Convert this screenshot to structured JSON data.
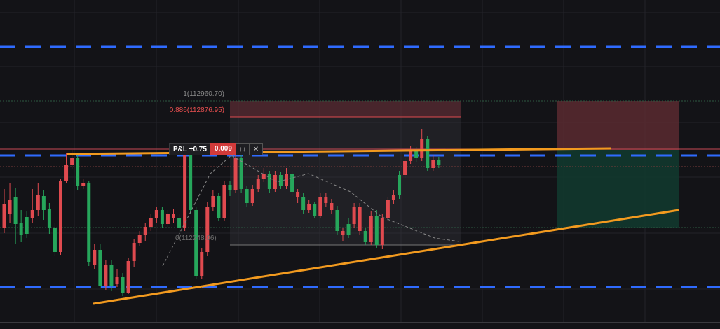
{
  "fib_levels": [
    {
      "label": "1(112960.70)",
      "color": "#8a8a8a"
    },
    {
      "label": "0.886(112876.95)",
      "color": "#e84f4f"
    },
    {
      "label": "0(112248.06)",
      "color": "#6f6f6f"
    }
  ],
  "position": {
    "pnl_label": "P&L +0.75",
    "quantity": "0.009",
    "reverse_icon": "↑↓",
    "close_icon": "✕"
  },
  "colors": {
    "background": "#131317",
    "grid": "#23232a",
    "bull": "#26a65b",
    "bear": "#e04a4f",
    "trendline": "#f29a1f",
    "dashed_level": "#2f6bff",
    "stop_zone": "#5a2a30",
    "target_zone": "#12392e"
  },
  "chart_data": {
    "type": "candlestick",
    "candles": [
      [
        1,
        292,
        325,
        270,
        333
      ],
      [
        1,
        305,
        285,
        262,
        318
      ],
      [
        0,
        282,
        320,
        268,
        348
      ],
      [
        0,
        318,
        336,
        300,
        346
      ],
      [
        0,
        334,
        310,
        302,
        340
      ],
      [
        1,
        312,
        300,
        270,
        318
      ],
      [
        1,
        300,
        278,
        262,
        308
      ],
      [
        0,
        280,
        300,
        272,
        314
      ],
      [
        0,
        298,
        325,
        290,
        334
      ],
      [
        0,
        325,
        360,
        318,
        366
      ],
      [
        1,
        360,
        258,
        255,
        365
      ],
      [
        1,
        258,
        236,
        218,
        262
      ],
      [
        1,
        236,
        226,
        214,
        242
      ],
      [
        0,
        226,
        266,
        220,
        272
      ],
      [
        1,
        266,
        262,
        255,
        270
      ],
      [
        0,
        262,
        375,
        258,
        380
      ],
      [
        1,
        378,
        357,
        348,
        384
      ],
      [
        0,
        357,
        408,
        348,
        412
      ],
      [
        1,
        408,
        378,
        372,
        414
      ],
      [
        0,
        378,
        408,
        372,
        416
      ],
      [
        1,
        406,
        396,
        385,
        410
      ],
      [
        0,
        396,
        418,
        390,
        423
      ],
      [
        1,
        418,
        373,
        368,
        420
      ],
      [
        1,
        373,
        347,
        342,
        382
      ],
      [
        1,
        347,
        336,
        330,
        352
      ],
      [
        1,
        336,
        324,
        318,
        344
      ],
      [
        1,
        324,
        312,
        306,
        330
      ],
      [
        1,
        312,
        300,
        296,
        318
      ],
      [
        0,
        300,
        320,
        296,
        326
      ],
      [
        1,
        320,
        306,
        300,
        324
      ],
      [
        1,
        306,
        312,
        298,
        318
      ],
      [
        0,
        312,
        326,
        306,
        332
      ],
      [
        1,
        326,
        222,
        214,
        330
      ],
      [
        0,
        222,
        300,
        218,
        306
      ],
      [
        0,
        300,
        394,
        295,
        398
      ],
      [
        1,
        394,
        360,
        355,
        398
      ],
      [
        1,
        360,
        296,
        288,
        366
      ],
      [
        1,
        296,
        280,
        272,
        302
      ],
      [
        0,
        280,
        312,
        276,
        316
      ],
      [
        1,
        312,
        264,
        258,
        316
      ],
      [
        0,
        264,
        272,
        258,
        280
      ],
      [
        1,
        272,
        226,
        220,
        276
      ],
      [
        0,
        226,
        270,
        222,
        276
      ],
      [
        0,
        270,
        290,
        265,
        296
      ],
      [
        1,
        290,
        270,
        264,
        294
      ],
      [
        1,
        270,
        256,
        250,
        274
      ],
      [
        1,
        256,
        248,
        240,
        260
      ],
      [
        0,
        248,
        270,
        244,
        276
      ],
      [
        1,
        270,
        250,
        244,
        274
      ],
      [
        0,
        250,
        266,
        246,
        270
      ],
      [
        1,
        266,
        248,
        240,
        270
      ],
      [
        0,
        248,
        274,
        244,
        280
      ],
      [
        1,
        274,
        282,
        270,
        290
      ],
      [
        0,
        282,
        300,
        276,
        306
      ],
      [
        1,
        300,
        292,
        286,
        304
      ],
      [
        0,
        292,
        308,
        288,
        312
      ],
      [
        1,
        308,
        282,
        276,
        312
      ],
      [
        1,
        282,
        290,
        276,
        296
      ],
      [
        1,
        290,
        300,
        284,
        306
      ],
      [
        0,
        300,
        330,
        294,
        336
      ],
      [
        1,
        330,
        336,
        326,
        344
      ],
      [
        0,
        336,
        320,
        312,
        340
      ],
      [
        1,
        320,
        296,
        290,
        326
      ],
      [
        1,
        296,
        330,
        290,
        336
      ],
      [
        0,
        330,
        346,
        326,
        350
      ],
      [
        1,
        346,
        308,
        302,
        350
      ],
      [
        0,
        308,
        350,
        300,
        354
      ],
      [
        1,
        350,
        312,
        306,
        356
      ],
      [
        1,
        312,
        286,
        282,
        316
      ],
      [
        1,
        286,
        278,
        272,
        292
      ],
      [
        0,
        278,
        250,
        244,
        284
      ],
      [
        1,
        250,
        230,
        226,
        254
      ],
      [
        1,
        230,
        214,
        208,
        234
      ],
      [
        0,
        214,
        226,
        210,
        232
      ],
      [
        1,
        226,
        198,
        184,
        230
      ],
      [
        0,
        198,
        240,
        194,
        244
      ],
      [
        1,
        240,
        228,
        222,
        244
      ],
      [
        0,
        228,
        236,
        224,
        240
      ]
    ],
    "y_label_note": "prices not printed on axis; fib labels printed",
    "fib_levels": [
      {
        "ratio": 1,
        "price": 112960.7
      },
      {
        "ratio": 0.886,
        "price": 112876.95
      },
      {
        "ratio": 0,
        "price": 112248.06
      }
    ]
  }
}
